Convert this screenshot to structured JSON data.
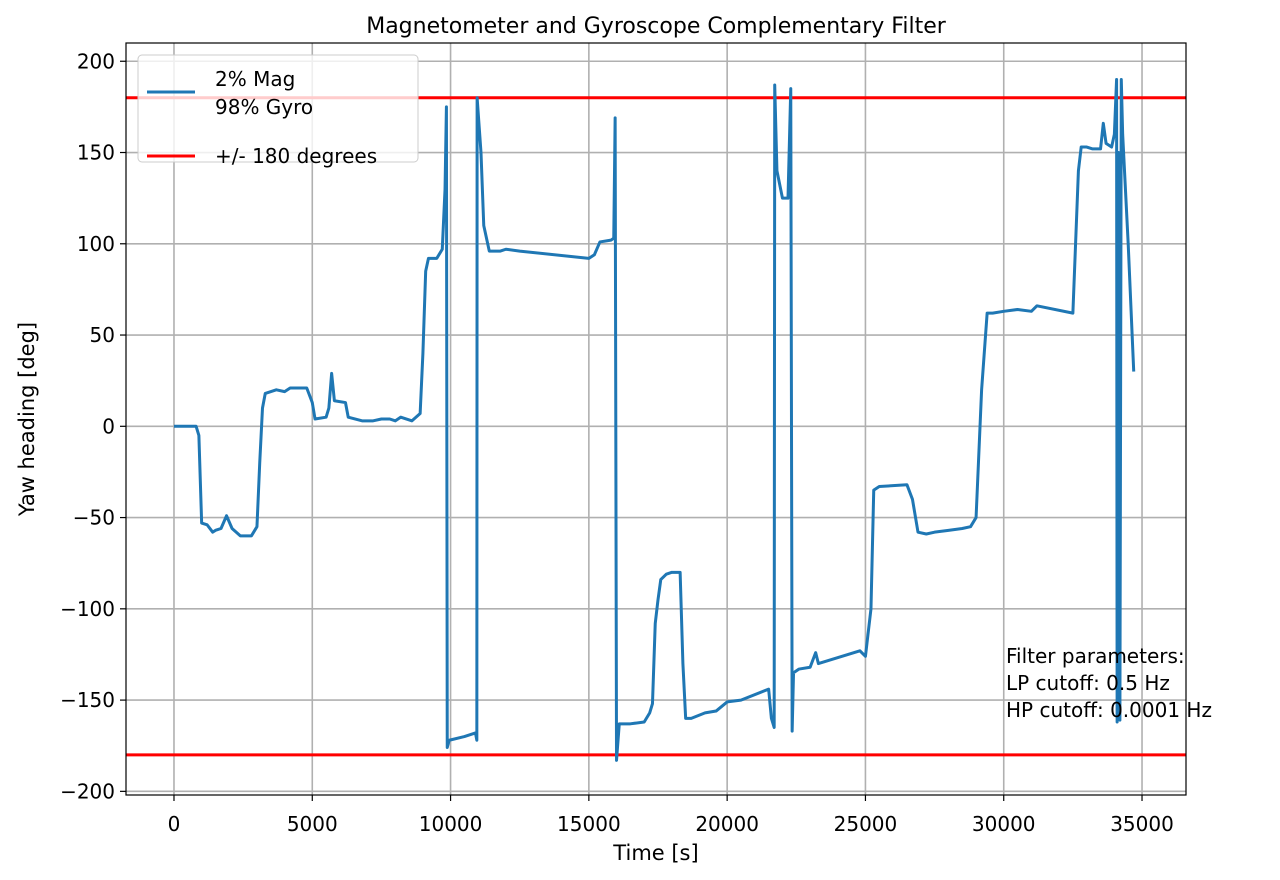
{
  "chart_data": {
    "type": "line",
    "title": "Magnetometer and Gyroscope Complementary Filter",
    "xlabel": "Time [s]",
    "ylabel": "Yaw heading [deg]",
    "xlim": [
      -1735,
      36590
    ],
    "ylim": [
      -202,
      210
    ],
    "xticks": [
      0,
      5000,
      10000,
      15000,
      20000,
      25000,
      30000,
      35000
    ],
    "yticks": [
      {
        "value": -200,
        "label": "−200"
      },
      {
        "value": -150,
        "label": "−150"
      },
      {
        "value": -100,
        "label": "−100"
      },
      {
        "value": -50,
        "label": "−50"
      },
      0,
      50,
      100,
      150,
      200
    ],
    "grid": true,
    "legend": "upper left",
    "series": [
      {
        "name": "2% Mag\n98% Gyro",
        "color": "#1f77b4",
        "x": [
          0,
          800,
          900,
          1000,
          1200,
          1400,
          1500,
          1700,
          1900,
          2100,
          2400,
          2800,
          3000,
          3100,
          3200,
          3300,
          3700,
          4000,
          4200,
          4500,
          4800,
          5000,
          5100,
          5500,
          5600,
          5700,
          5800,
          6200,
          6300,
          6800,
          7200,
          7500,
          7800,
          8000,
          8200,
          8600,
          8900,
          9000,
          9100,
          9200,
          9500,
          9700,
          9800,
          9850,
          9880,
          9950,
          10500,
          10900,
          10950,
          10960,
          11100,
          11200,
          11400,
          11800,
          12000,
          12500,
          15000,
          15200,
          15400,
          15800,
          15900,
          15950,
          16000,
          16100,
          16500,
          17000,
          17200,
          17300,
          17400,
          17500,
          17600,
          17800,
          18000,
          18300,
          18400,
          18500,
          18700,
          19200,
          19600,
          20000,
          20500,
          21500,
          21600,
          21700,
          21720,
          21800,
          22000,
          22200,
          22300,
          22350,
          22400,
          22600,
          23000,
          23200,
          23300,
          24800,
          25000,
          25200,
          25300,
          25500,
          26500,
          26700,
          26900,
          27200,
          27500,
          28000,
          28500,
          28800,
          29000,
          29200,
          29400,
          29600,
          30000,
          30500,
          31000,
          31200,
          32500,
          32700,
          32800,
          33000,
          33200,
          33500,
          33600,
          33700,
          33900,
          34000,
          34080,
          34100,
          34150,
          34200,
          34250,
          34300,
          34500,
          34700
        ],
        "values": [
          0,
          0,
          -5,
          -53,
          -54,
          -58,
          -57,
          -56,
          -49,
          -56,
          -60,
          -60,
          -55,
          -20,
          10,
          18,
          20,
          19,
          21,
          21,
          21,
          13,
          4,
          5,
          10,
          29,
          14,
          13,
          5,
          3,
          3,
          4,
          4,
          3,
          5,
          3,
          7,
          40,
          85,
          92,
          92,
          97,
          130,
          175,
          -176,
          -172,
          -170,
          -168,
          -172,
          180,
          150,
          110,
          96,
          96,
          97,
          96,
          92,
          94,
          101,
          102,
          103,
          169,
          -183,
          -163,
          -163,
          -162,
          -157,
          -152,
          -108,
          -95,
          -84,
          -81,
          -80,
          -80,
          -130,
          -160,
          -160,
          -157,
          -156,
          -151,
          -150,
          -144,
          -160,
          -165,
          187,
          140,
          125,
          125,
          185,
          -167,
          -135,
          -133,
          -132,
          -124,
          -130,
          -123,
          -126,
          -100,
          -35,
          -33,
          -32,
          -40,
          -58,
          -59,
          -58,
          -57,
          -56,
          -55,
          -50,
          20,
          62,
          62,
          63,
          64,
          63,
          66,
          62,
          140,
          153,
          153,
          152,
          152,
          166,
          155,
          153,
          160,
          190,
          -162,
          150,
          -161,
          190,
          160,
          100,
          30
        ]
      }
    ],
    "hlines": {
      "name": "+/- 180 degrees",
      "color": "#ff0000",
      "values": [
        180,
        -180
      ]
    },
    "annotation": [
      "Filter parameters:",
      "LP cutoff: 0.5 Hz",
      "HP cutoff: 0.0001 Hz"
    ]
  }
}
